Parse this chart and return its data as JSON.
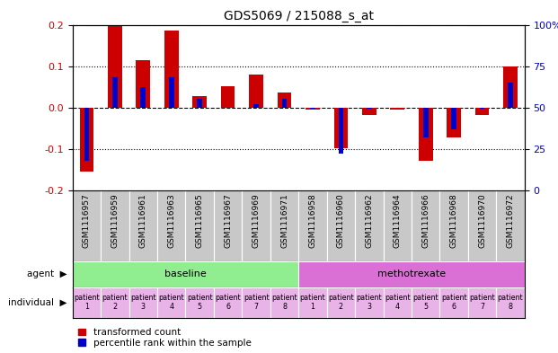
{
  "title": "GDS5069 / 215088_s_at",
  "sample_ids": [
    "GSM1116957",
    "GSM1116959",
    "GSM1116961",
    "GSM1116963",
    "GSM1116965",
    "GSM1116967",
    "GSM1116969",
    "GSM1116971",
    "GSM1116958",
    "GSM1116960",
    "GSM1116962",
    "GSM1116964",
    "GSM1116966",
    "GSM1116968",
    "GSM1116970",
    "GSM1116972"
  ],
  "red_values": [
    -0.155,
    0.2,
    0.115,
    0.185,
    0.028,
    0.052,
    0.08,
    0.035,
    -0.005,
    -0.098,
    -0.018,
    -0.005,
    -0.13,
    -0.072,
    -0.018,
    0.1
  ],
  "blue_values_pct": [
    18,
    68,
    62,
    68,
    55,
    50,
    52,
    55,
    49,
    22,
    49,
    50,
    32,
    37,
    49,
    65
  ],
  "agent_groups": [
    {
      "label": "baseline",
      "start": 0,
      "end": 8,
      "color": "#90EE90"
    },
    {
      "label": "methotrexate",
      "start": 8,
      "end": 16,
      "color": "#DA70D6"
    }
  ],
  "individual_labels": [
    "patient\n1",
    "patient\n2",
    "patient\n3",
    "patient\n4",
    "patient\n5",
    "patient\n6",
    "patient\n7",
    "patient\n8",
    "patient\n1",
    "patient\n2",
    "patient\n3",
    "patient\n4",
    "patient\n5",
    "patient\n6",
    "patient\n7",
    "patient\n8"
  ],
  "indiv_cell_color": "#E8B4E8",
  "ylim": [
    -0.2,
    0.2
  ],
  "yticks_left": [
    -0.2,
    -0.1,
    0.0,
    0.1,
    0.2
  ],
  "yticks_right": [
    0,
    25,
    50,
    75,
    100
  ],
  "red_color": "#CC0000",
  "blue_color": "#0000CC",
  "red_bar_width": 0.5,
  "blue_bar_width": 0.18,
  "legend_red": "transformed count",
  "legend_blue": "percentile rank within the sample",
  "agent_label": "agent",
  "individual_label": "individual",
  "gsm_label_bg": "#C8C8C8",
  "gsm_label_fontsize": 6.5,
  "title_fontsize": 10
}
